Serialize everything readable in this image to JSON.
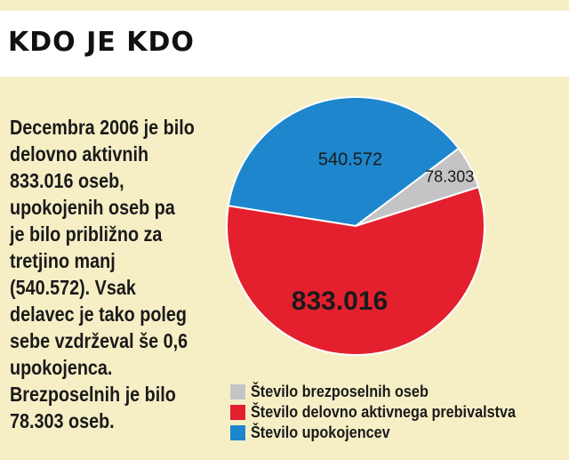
{
  "title": "KDO JE KDO",
  "body_lines": [
    "Decembra 2006 je bilo",
    "delovno aktivnih",
    "833.016 oseb,",
    "upokojenih oseb pa",
    "je bilo približno za",
    "tretjino manj",
    "(540.572). Vsak",
    "delavec je tako poleg",
    "sebe vzdrževal še 0,6",
    "upokojenca.",
    "Brezposelnih je bilo",
    "78.303 oseb."
  ],
  "chart_data": {
    "type": "pie",
    "slices": [
      {
        "label": "Število brezposelnih oseb",
        "value": 78303,
        "display": "78.303",
        "color": "#c4c4c6"
      },
      {
        "label": "Število delovno aktivnega prebivalstva",
        "value": 833016,
        "display": "833.016",
        "color": "#e4202e"
      },
      {
        "label": "Število upokojencev",
        "value": 540572,
        "display": "540.572",
        "color": "#1d86cc"
      }
    ],
    "legend_position": "bottom-right"
  }
}
